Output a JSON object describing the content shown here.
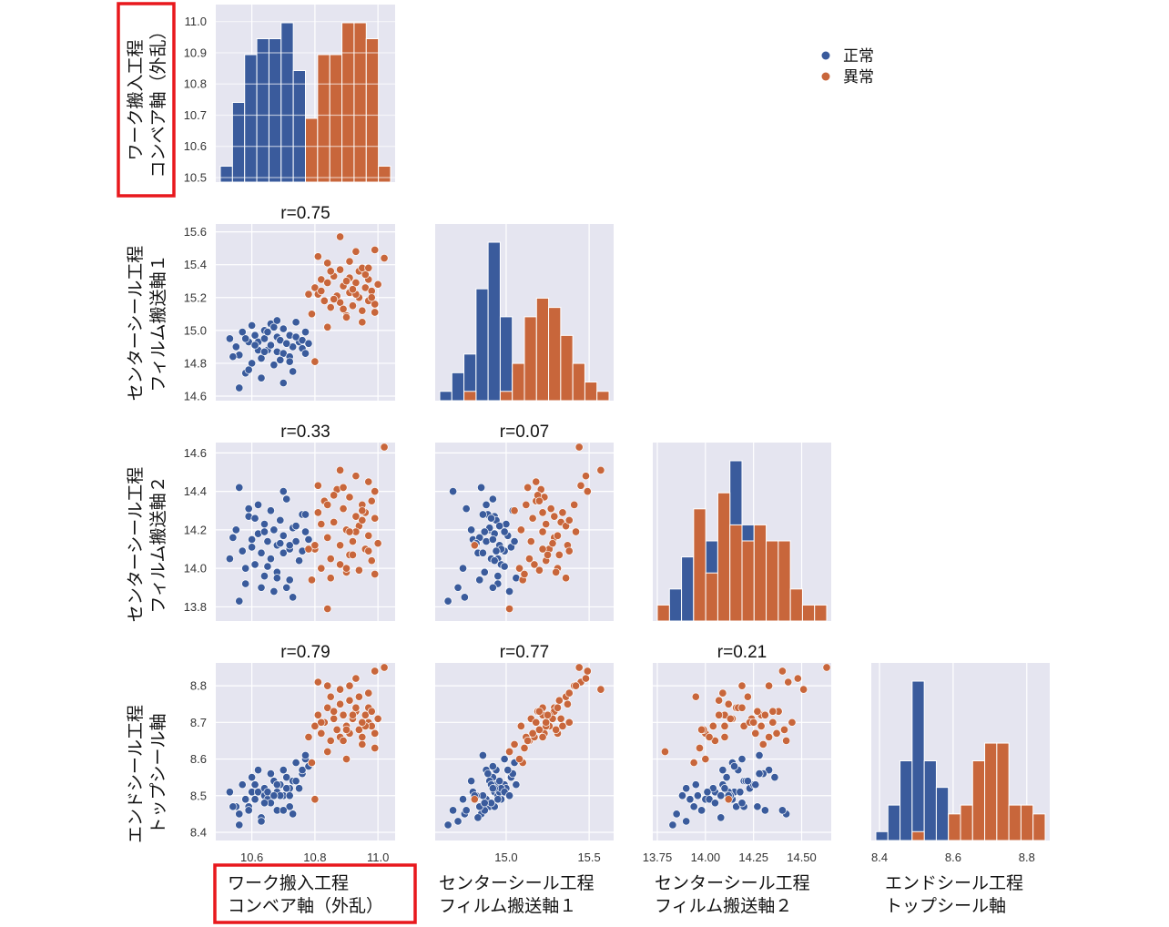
{
  "colors": {
    "normal": "#3a5b9c",
    "anomaly": "#c8663b",
    "panel_bg": "#e5e5f0",
    "highlight": "#e8181d"
  },
  "legend": [
    {
      "label": "正常",
      "color": "#3a5b9c"
    },
    {
      "label": "異常",
      "color": "#c8663b"
    }
  ],
  "chart_data": {
    "type": "scatter",
    "title": "",
    "variables": [
      {
        "name_lines": [
          "ワーク搬入工程",
          "コンベア軸（外乱）"
        ],
        "highlighted": true
      },
      {
        "name_lines": [
          "センターシール工程",
          "フィルム搬送軸１"
        ],
        "highlighted": false
      },
      {
        "name_lines": [
          "センターシール工程",
          "フィルム搬送軸２"
        ],
        "highlighted": false
      },
      {
        "name_lines": [
          "エンドシール工程",
          "トップシール軸"
        ],
        "highlighted": false
      }
    ],
    "axis_ranges": [
      [
        10.5,
        11.04
      ],
      [
        14.6,
        15.62
      ],
      [
        13.75,
        14.63
      ],
      [
        8.39,
        8.85
      ]
    ],
    "x_ticks": [
      [
        "10.6",
        "10.8",
        "11.0"
      ],
      [
        "15.0",
        "15.5"
      ],
      [
        "13.75",
        "14.00",
        "14.25",
        "14.50"
      ],
      [
        "8.4",
        "8.6",
        "8.8"
      ]
    ],
    "y_ticks": [
      [
        "10.5",
        "10.6",
        "10.7",
        "10.8",
        "10.9",
        "11.0"
      ],
      [
        "14.6",
        "14.8",
        "15.0",
        "15.2",
        "15.4",
        "15.6"
      ],
      [
        "13.8",
        "14.0",
        "14.2",
        "14.4",
        "14.6"
      ],
      [
        "8.4",
        "8.5",
        "8.6",
        "8.7",
        "8.8"
      ]
    ],
    "correlations": {
      "1-0": "r=0.75",
      "2-0": "r=0.33",
      "2-1": "r=0.07",
      "3-0": "r=0.79",
      "3-1": "r=0.77",
      "3-2": "r=0.21"
    },
    "series": [
      {
        "name": "正常",
        "points": [
          [
            10.53,
            14.95,
            14.05,
            8.51
          ],
          [
            10.55,
            14.9,
            14.2,
            8.47
          ],
          [
            10.56,
            14.85,
            14.42,
            8.45
          ],
          [
            10.57,
            14.99,
            14.09,
            8.53
          ],
          [
            10.58,
            14.74,
            14.0,
            8.49
          ],
          [
            10.59,
            14.93,
            14.27,
            8.47
          ],
          [
            10.6,
            15.03,
            14.11,
            8.55
          ],
          [
            10.6,
            14.8,
            14.15,
            8.51
          ],
          [
            10.61,
            14.97,
            14.02,
            8.49
          ],
          [
            10.62,
            14.88,
            14.33,
            8.57
          ],
          [
            10.62,
            14.93,
            14.18,
            8.51
          ],
          [
            10.63,
            14.83,
            14.08,
            8.44
          ],
          [
            10.64,
            15.0,
            14.23,
            8.52
          ],
          [
            10.64,
            14.95,
            13.96,
            8.5
          ],
          [
            10.65,
            14.88,
            14.14,
            8.49
          ],
          [
            10.66,
            15.04,
            14.3,
            8.56
          ],
          [
            10.66,
            14.91,
            14.05,
            8.48
          ],
          [
            10.67,
            14.79,
            14.2,
            8.54
          ],
          [
            10.68,
            14.96,
            14.12,
            8.51
          ],
          [
            10.68,
            14.87,
            13.98,
            8.46
          ],
          [
            10.69,
            14.94,
            14.25,
            8.53
          ],
          [
            10.7,
            15.01,
            14.17,
            8.57
          ],
          [
            10.7,
            14.86,
            14.08,
            8.5
          ],
          [
            10.71,
            14.92,
            14.36,
            8.55
          ],
          [
            10.72,
            14.97,
            14.1,
            8.52
          ],
          [
            10.72,
            14.84,
            13.94,
            8.47
          ],
          [
            10.73,
            14.9,
            14.21,
            8.54
          ],
          [
            10.74,
            15.05,
            14.14,
            8.59
          ],
          [
            10.75,
            14.93,
            14.04,
            8.52
          ],
          [
            10.76,
            14.89,
            14.28,
            8.56
          ],
          [
            10.77,
            14.99,
            14.19,
            8.6
          ],
          [
            10.54,
            14.84,
            14.16,
            8.47
          ],
          [
            10.58,
            14.95,
            13.92,
            8.49
          ],
          [
            10.61,
            14.91,
            14.26,
            8.53
          ],
          [
            10.65,
            14.99,
            14.01,
            8.51
          ],
          [
            10.69,
            14.82,
            14.13,
            8.5
          ],
          [
            10.71,
            14.92,
            13.9,
            8.52
          ],
          [
            10.74,
            14.96,
            14.22,
            8.54
          ],
          [
            10.76,
            14.94,
            14.09,
            8.57
          ],
          [
            10.78,
            14.92,
            14.15,
            8.58
          ],
          [
            10.56,
            14.65,
            13.83,
            8.42
          ],
          [
            10.63,
            14.71,
            13.9,
            8.43
          ],
          [
            10.7,
            14.68,
            14.4,
            8.46
          ],
          [
            10.73,
            14.75,
            13.85,
            8.45
          ],
          [
            10.77,
            14.86,
            14.28,
            8.61
          ],
          [
            10.59,
            14.76,
            14.31,
            8.46
          ],
          [
            10.67,
            15.02,
            13.88,
            8.5
          ],
          [
            10.72,
            14.81,
            14.12,
            8.5
          ],
          [
            10.64,
            14.87,
            14.19,
            8.48
          ],
          [
            10.68,
            15.06,
            13.95,
            8.53
          ]
        ]
      },
      {
        "name": "異常",
        "points": [
          [
            10.8,
            15.26,
            14.1,
            8.69
          ],
          [
            10.81,
            15.22,
            14.29,
            8.72
          ],
          [
            10.82,
            15.31,
            14.0,
            8.67
          ],
          [
            10.83,
            15.18,
            14.35,
            8.7
          ],
          [
            10.84,
            15.29,
            14.16,
            8.74
          ],
          [
            10.85,
            15.14,
            14.05,
            8.65
          ],
          [
            10.86,
            15.33,
            14.24,
            8.71
          ],
          [
            10.87,
            15.21,
            14.41,
            8.68
          ],
          [
            10.88,
            15.37,
            14.12,
            8.75
          ],
          [
            10.88,
            15.17,
            14.02,
            8.66
          ],
          [
            10.89,
            15.27,
            14.31,
            8.72
          ],
          [
            10.9,
            15.09,
            14.2,
            8.69
          ],
          [
            10.91,
            15.32,
            14.07,
            8.76
          ],
          [
            10.91,
            15.23,
            14.37,
            8.67
          ],
          [
            10.92,
            15.15,
            14.14,
            8.71
          ],
          [
            10.93,
            15.29,
            14.27,
            8.73
          ],
          [
            10.94,
            15.2,
            13.99,
            8.68
          ],
          [
            10.94,
            15.36,
            14.22,
            8.77
          ],
          [
            10.95,
            15.12,
            14.33,
            8.66
          ],
          [
            10.96,
            15.26,
            14.1,
            8.72
          ],
          [
            10.97,
            15.18,
            14.45,
            8.7
          ],
          [
            10.97,
            15.31,
            14.17,
            8.74
          ],
          [
            10.98,
            15.24,
            14.04,
            8.69
          ],
          [
            10.99,
            15.16,
            14.26,
            8.67
          ],
          [
            11.0,
            15.28,
            14.13,
            8.71
          ],
          [
            10.82,
            15.24,
            14.23,
            8.7
          ],
          [
            10.86,
            15.19,
            14.38,
            8.73
          ],
          [
            10.9,
            15.3,
            13.98,
            8.68
          ],
          [
            10.93,
            15.22,
            14.19,
            8.74
          ],
          [
            10.96,
            15.34,
            14.29,
            8.69
          ],
          [
            10.85,
            15.36,
            13.95,
            8.77
          ],
          [
            10.89,
            15.13,
            14.42,
            8.65
          ],
          [
            10.92,
            15.25,
            14.07,
            8.72
          ],
          [
            10.95,
            15.38,
            14.25,
            8.7
          ],
          [
            10.98,
            15.2,
            14.35,
            8.73
          ],
          [
            10.81,
            15.45,
            14.43,
            8.81
          ],
          [
            10.88,
            15.57,
            14.51,
            8.79
          ],
          [
            10.93,
            15.48,
            14.48,
            8.82
          ],
          [
            10.99,
            15.49,
            14.4,
            8.84
          ],
          [
            11.02,
            15.44,
            14.63,
            8.85
          ],
          [
            10.79,
            15.1,
            13.94,
            8.59
          ],
          [
            10.84,
            15.02,
            13.79,
            8.62
          ],
          [
            10.9,
            15.08,
            14.0,
            8.6
          ],
          [
            10.95,
            15.05,
            14.3,
            8.64
          ],
          [
            10.99,
            15.11,
            13.97,
            8.63
          ],
          [
            10.78,
            15.22,
            14.1,
            8.66
          ],
          [
            10.84,
            15.41,
            14.33,
            8.8
          ],
          [
            10.91,
            15.42,
            14.19,
            8.8
          ],
          [
            10.97,
            15.38,
            14.09,
            8.78
          ],
          [
            10.8,
            14.81,
            14.12,
            8.49
          ]
        ]
      }
    ]
  }
}
